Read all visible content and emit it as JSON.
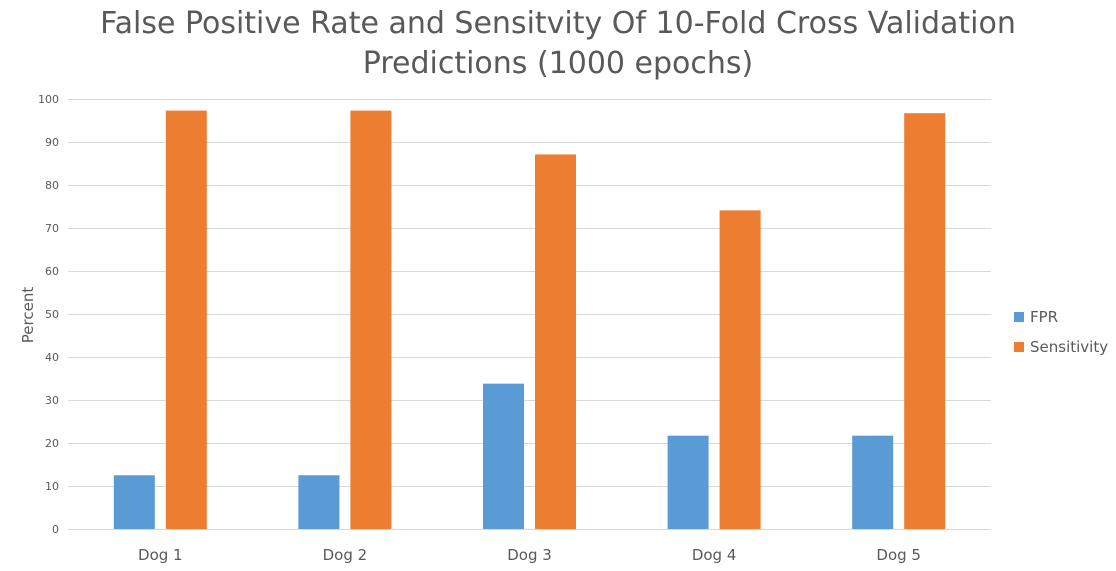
{
  "chart_data": {
    "type": "bar",
    "title": "False Positive Rate and Sensitvity Of 10-Fold Cross Validation Predictions (1000 epochs)",
    "title_lines": [
      "False Positive Rate and Sensitvity Of 10-Fold Cross Validation",
      "Predictions (1000 epochs)"
    ],
    "xlabel": "",
    "ylabel": "Percent",
    "categories": [
      "Dog 1",
      "Dog 2",
      "Dog 3",
      "Dog 4",
      "Dog 5"
    ],
    "series": [
      {
        "name": "FPR",
        "color": "#5b9bd5",
        "values": [
          12.5,
          12.5,
          33.8,
          21.7,
          21.7
        ]
      },
      {
        "name": "Sensitivity",
        "color": "#ed7d31",
        "values": [
          97.3,
          97.3,
          87.1,
          74.1,
          96.7
        ]
      }
    ],
    "ylim": [
      0,
      100
    ],
    "yticks": [
      0,
      10,
      20,
      30,
      40,
      50,
      60,
      70,
      80,
      90,
      100
    ],
    "grid": true,
    "legend": "right"
  }
}
